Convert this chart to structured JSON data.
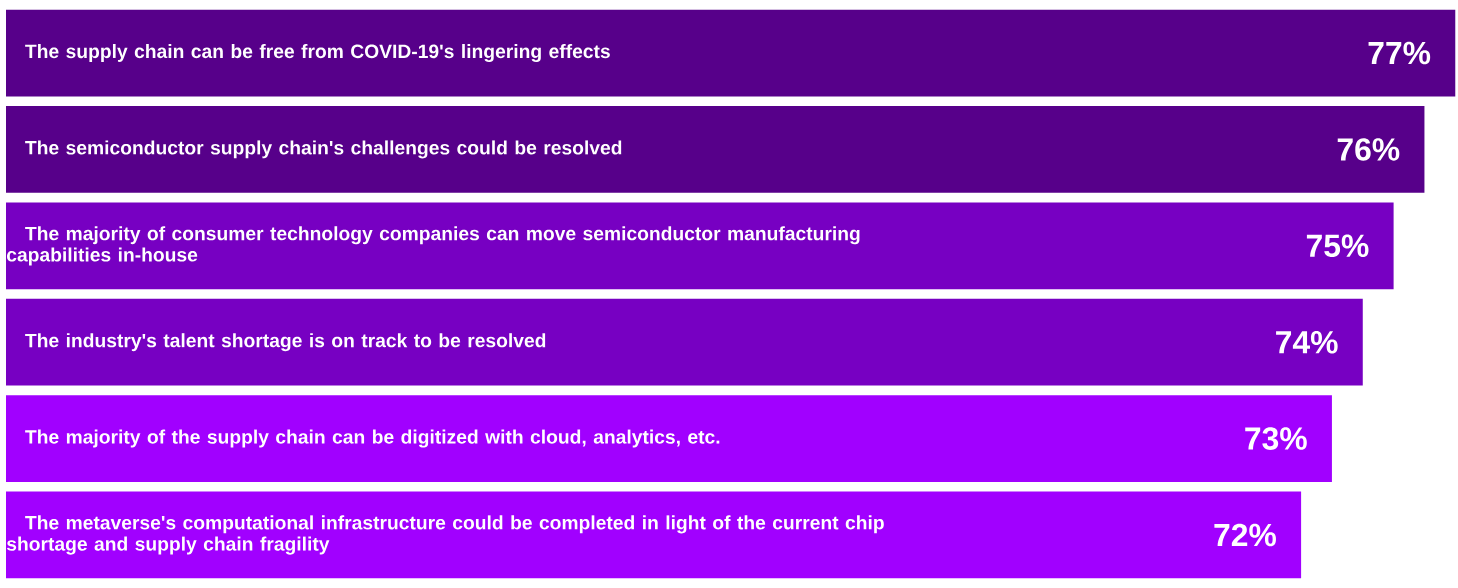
{
  "chart_data": {
    "type": "bar",
    "orientation": "horizontal",
    "categories": [
      "The supply chain can be free from COVID-19's lingering effects",
      "The semiconductor supply chain's challenges could be resolved",
      "The majority of consumer technology companies can move semiconductor manufacturing capabilities in-house",
      "The industry's talent shortage is on track to be resolved",
      "The majority of the supply chain can be digitized with cloud, analytics, etc.",
      "The metaverse's computational infrastructure could be completed in light of the current chip shortage and supply chain fragility"
    ],
    "values": [
      77,
      76,
      75,
      74,
      73,
      72
    ],
    "value_labels": [
      "77%",
      "76%",
      "75%",
      "74%",
      "73%",
      "72%"
    ],
    "colors": [
      "#57008a",
      "#57008a",
      "#7700c2",
      "#7700c2",
      "#a100ff",
      "#a100ff"
    ],
    "xlim": [
      30,
      77
    ]
  }
}
